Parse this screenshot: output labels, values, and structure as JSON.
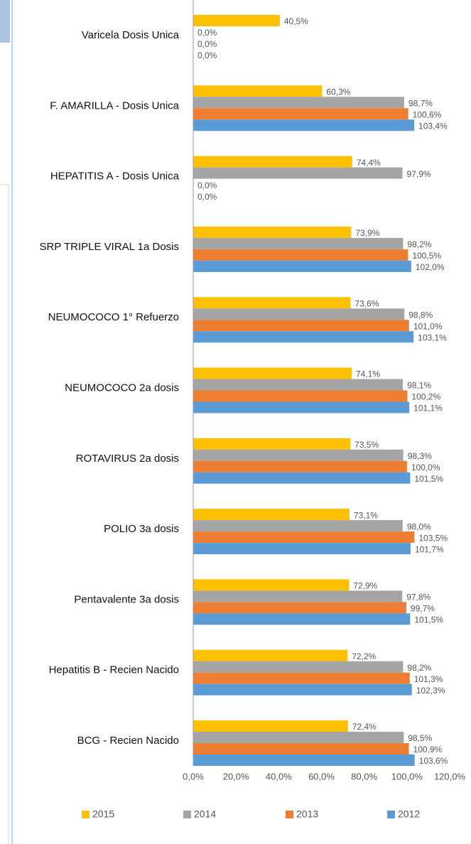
{
  "chart_data": {
    "type": "bar",
    "orientation": "horizontal",
    "categories": [
      "Varicela Dosis Unica",
      "F. AMARILLA - Dosis Unica",
      "HEPATITIS A - Dosis Unica",
      "SRP TRIPLE VIRAL 1a Dosis",
      "NEUMOCOCO 1° Refuerzo",
      "NEUMOCOCO 2a dosis",
      "ROTAVIRUS 2a dosis",
      "POLIO 3a dosis",
      "Pentavalente 3a dosis",
      "Hepatitis B - Recien Nacido",
      "BCG - Recien Nacido"
    ],
    "series": [
      {
        "name": "2015",
        "color": "#ffc000",
        "values": [
          40.5,
          60.3,
          74.4,
          73.9,
          73.6,
          74.1,
          73.5,
          73.1,
          72.9,
          72.2,
          72.4
        ],
        "value_labels": [
          "40,5%",
          "60,3%",
          "74,4%",
          "73,9%",
          "73,6%",
          "74,1%",
          "73,5%",
          "73,1%",
          "72,9%",
          "72,2%",
          "72,4%"
        ]
      },
      {
        "name": "2014",
        "color": "#a5a5a5",
        "values": [
          0,
          98.7,
          97.9,
          98.2,
          98.8,
          98.1,
          98.3,
          98.0,
          97.8,
          98.2,
          98.5
        ],
        "value_labels": [
          "0,0%",
          "98,7%",
          "97,9%",
          "98,2%",
          "98,8%",
          "98,1%",
          "98,3%",
          "98,0%",
          "97,8%",
          "98,2%",
          "98,5%"
        ]
      },
      {
        "name": "2013",
        "color": "#ed7d31",
        "values": [
          0,
          100.6,
          0,
          100.5,
          101.0,
          100.2,
          100.0,
          103.5,
          99.7,
          101.3,
          100.9
        ],
        "value_labels": [
          "0,0%",
          "100,6%",
          "0,0%",
          "100,5%",
          "101,0%",
          "100,2%",
          "100,0%",
          "103,5%",
          "99,7%",
          "101,3%",
          "100,9%"
        ]
      },
      {
        "name": "2012",
        "color": "#5b9bd5",
        "values": [
          0,
          103.4,
          0,
          102.0,
          103.1,
          101.1,
          101.5,
          101.7,
          101.5,
          102.3,
          103.6
        ],
        "value_labels": [
          "0,0%",
          "103,4%",
          "0,0%",
          "102,0%",
          "103,1%",
          "101,1%",
          "101,5%",
          "101,7%",
          "101,5%",
          "102,3%",
          "103,6%"
        ]
      }
    ],
    "xlim": [
      0,
      120
    ],
    "xticks": [
      {
        "value": 0,
        "label": "0,0%"
      },
      {
        "value": 20,
        "label": "20,0%"
      },
      {
        "value": 40,
        "label": "40,0%"
      },
      {
        "value": 60,
        "label": "60,0%"
      },
      {
        "value": 80,
        "label": "80,0%"
      },
      {
        "value": 100,
        "label": "100,0%"
      },
      {
        "value": 120,
        "label": "120,0%"
      }
    ],
    "legend": "bottom"
  }
}
